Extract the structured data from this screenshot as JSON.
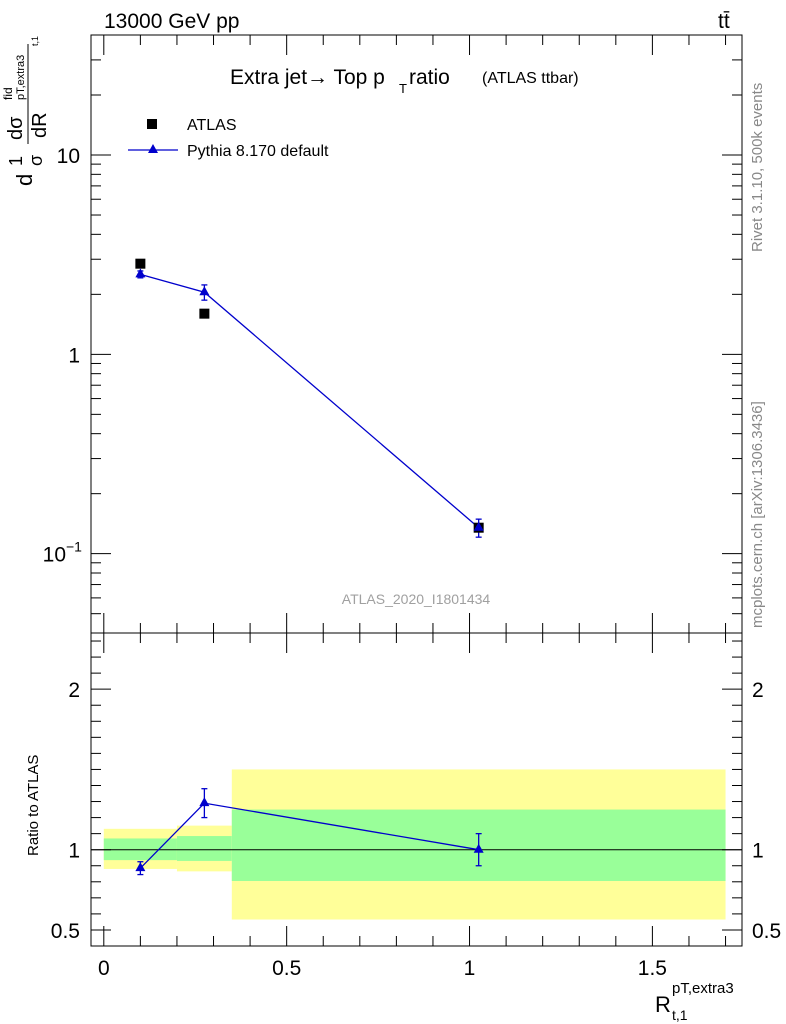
{
  "header": {
    "energy_label": "13000 GeV pp",
    "process_label": "tt̄"
  },
  "title": {
    "main": "Extra jet→ Top p",
    "sub": "T",
    "after": " ratio",
    "small": "(ATLAS ttbar)"
  },
  "side_text": {
    "rivet": "Rivet 3.1.10,  500k events",
    "mcplots": "mcplots.cern.ch [arXiv:1306.3436]"
  },
  "analysis_id": "ATLAS_2020_I1801434",
  "y_axis_title": {
    "d": "d",
    "one": "1",
    "sigma": "σ",
    "d_sigma": "dσ",
    "fid": "fid",
    "sub_label": "pT,extra3",
    "sub2": "t,1",
    "dR": "dR"
  },
  "x_axis_title": {
    "R": "R",
    "sup": "pT,extra3",
    "sub": "t,1"
  },
  "ratio_ylabel": "Ratio to ATLAS",
  "legend": [
    {
      "label": "ATLAS",
      "marker": "square",
      "color": "#000000"
    },
    {
      "label": "Pythia 8.170 default",
      "marker": "triangle",
      "color": "#0000cc"
    }
  ],
  "chart_data": {
    "type": "scatter",
    "main": {
      "yscale": "log",
      "ylim": [
        0.04,
        40
      ],
      "y_ticks": [
        {
          "value": 0.1,
          "base": "10",
          "exp": "−1"
        },
        {
          "value": 1,
          "label": "1"
        },
        {
          "value": 10,
          "label": "10"
        }
      ],
      "series": [
        {
          "name": "ATLAS",
          "x": [
            0.1,
            0.275,
            1.025
          ],
          "y": [
            2.85,
            1.6,
            0.135
          ]
        },
        {
          "name": "Pythia 8.170 default",
          "x": [
            0.1,
            0.275,
            1.025
          ],
          "y": [
            2.52,
            2.05,
            0.135
          ],
          "yerr": [
            0.1,
            0.18,
            0.014
          ]
        }
      ]
    },
    "ratio": {
      "ylim": [
        0.4,
        2.35
      ],
      "y_ticks": [
        {
          "value": 0.5,
          "label": "0.5"
        },
        {
          "value": 1,
          "label": "1"
        },
        {
          "value": 2,
          "label": "2"
        }
      ],
      "bands": [
        {
          "x0": 0.0,
          "x1": 0.2,
          "yellow": [
            0.88,
            1.13
          ],
          "green": [
            0.935,
            1.07
          ]
        },
        {
          "x0": 0.2,
          "x1": 0.35,
          "yellow": [
            0.865,
            1.15
          ],
          "green": [
            0.93,
            1.085
          ]
        },
        {
          "x0": 0.35,
          "x1": 1.7,
          "yellow": [
            0.565,
            1.5
          ],
          "green": [
            0.805,
            1.25
          ]
        }
      ],
      "series": {
        "name": "Pythia 8.170 default",
        "x": [
          0.1,
          0.275,
          1.025
        ],
        "y": [
          0.885,
          1.29,
          1.0
        ],
        "yerr": [
          0.04,
          0.09,
          0.1
        ]
      }
    },
    "xlim": [
      -0.035,
      1.745
    ],
    "x_ticks": [
      {
        "value": 0,
        "label": "0"
      },
      {
        "value": 0.5,
        "label": "0.5"
      },
      {
        "value": 1,
        "label": "1"
      },
      {
        "value": 1.5,
        "label": "1.5"
      }
    ],
    "colors": {
      "data": "#000000",
      "mc": "#0000cc",
      "band_green": "#99ff99",
      "band_yellow": "#ffff99"
    }
  }
}
